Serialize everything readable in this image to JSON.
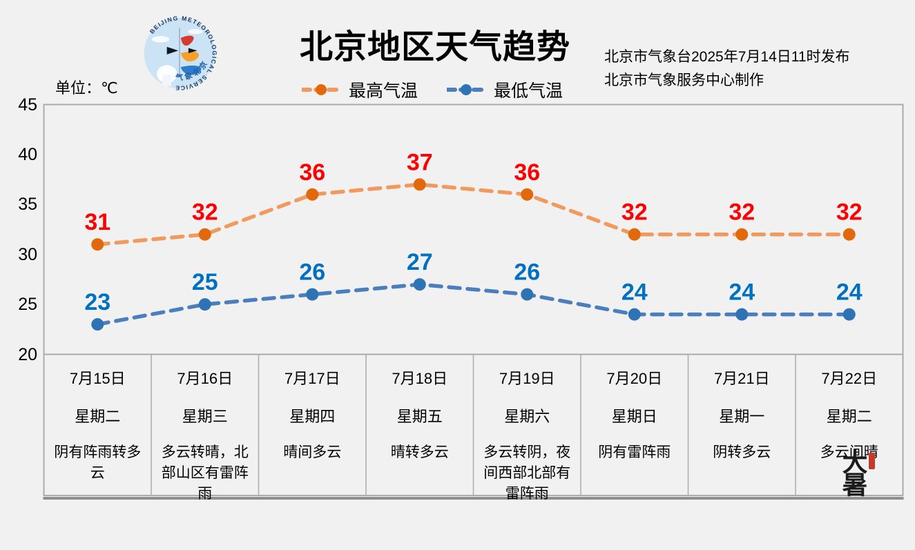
{
  "header": {
    "title": "北京地区天气趋势",
    "unit_label": "单位：℃",
    "issued_line1": "北京市气象台2025年7月14日11时发布",
    "issued_line2": "北京市气象服务中心制作",
    "logo": {
      "arc_text": "BEIJING METEOROLOGICAL SERVICE",
      "bottom_text": "气象北京"
    }
  },
  "stamp": {
    "text": "大暑"
  },
  "chart_data": {
    "type": "line",
    "title": "北京地区天气趋势",
    "unit": "℃",
    "ylim": [
      20,
      45
    ],
    "yticks": [
      20,
      25,
      30,
      35,
      40,
      45
    ],
    "grid": false,
    "legend_position": "top",
    "categories": [
      {
        "date": "7月15日",
        "weekday": "星期二",
        "weather": "阴有阵雨转多云"
      },
      {
        "date": "7月16日",
        "weekday": "星期三",
        "weather": "多云转晴，北部山区有雷阵雨"
      },
      {
        "date": "7月17日",
        "weekday": "星期四",
        "weather": "晴间多云"
      },
      {
        "date": "7月18日",
        "weekday": "星期五",
        "weather": "晴转多云"
      },
      {
        "date": "7月19日",
        "weekday": "星期六",
        "weather": "多云转阴，夜间西部北部有雷阵雨"
      },
      {
        "date": "7月20日",
        "weekday": "星期日",
        "weather": "阴有雷阵雨"
      },
      {
        "date": "7月21日",
        "weekday": "星期一",
        "weather": "阴转多云"
      },
      {
        "date": "7月22日",
        "weekday": "星期二",
        "weather": "多云间晴"
      }
    ],
    "series": [
      {
        "name": "最高气温",
        "values": [
          31,
          32,
          36,
          37,
          36,
          32,
          32,
          32
        ],
        "line_color": "#F09A5E",
        "marker_color": "#E2690B",
        "label_color": "#FE0000"
      },
      {
        "name": "最低气温",
        "values": [
          23,
          25,
          26,
          27,
          26,
          24,
          24,
          24
        ],
        "line_color": "#4B7EBC",
        "marker_color": "#2E74B5",
        "label_color": "#0070C0"
      }
    ]
  },
  "colors": {
    "background": "#F1F1F2",
    "border": "#ABABAB",
    "border_heavy": "#8E8E8E",
    "high_label": "#FE0000",
    "low_label": "#0070C0"
  }
}
